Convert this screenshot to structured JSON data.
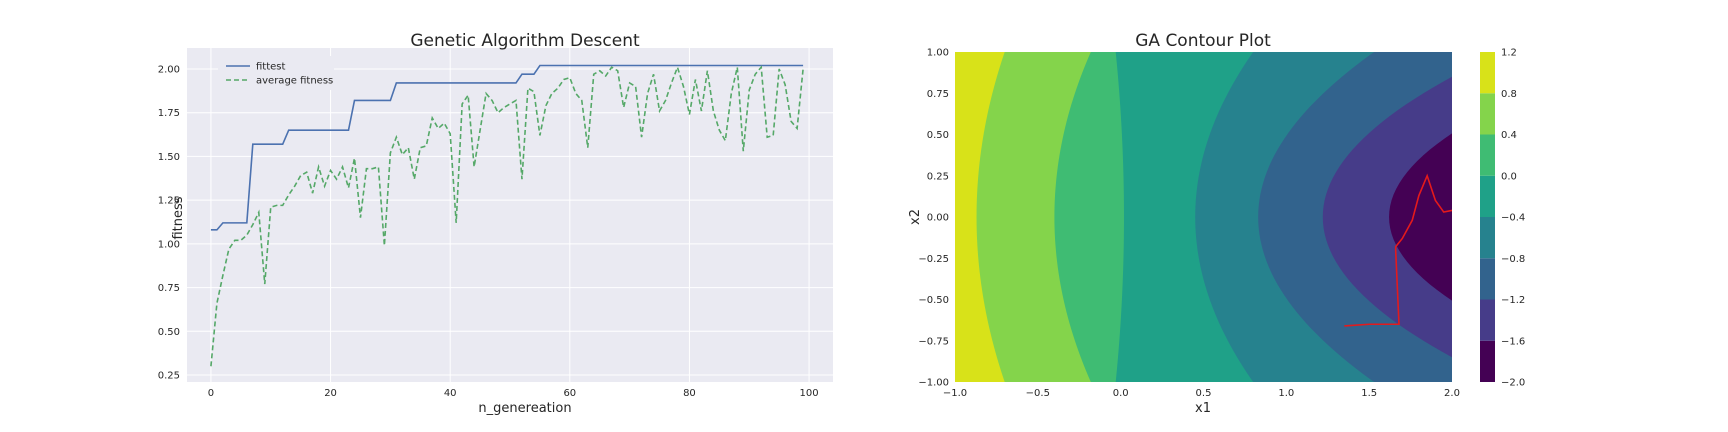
{
  "chart_data": [
    {
      "type": "line",
      "title": "Genetic Algorithm Descent",
      "xlabel": "n_genereation",
      "ylabel": "fitness",
      "xlim": [
        -4,
        104
      ],
      "ylim": [
        0.21,
        2.12
      ],
      "xticks": [
        0,
        20,
        40,
        60,
        80,
        100
      ],
      "yticks": [
        0.25,
        0.5,
        0.75,
        1.0,
        1.25,
        1.5,
        1.75,
        2.0
      ],
      "xtick_labels": [
        "0",
        "20",
        "40",
        "60",
        "80",
        "100"
      ],
      "ytick_labels": [
        "0.25",
        "0.50",
        "0.75",
        "1.00",
        "1.25",
        "1.50",
        "1.75",
        "2.00"
      ],
      "grid": true,
      "legend": "top-left",
      "series": [
        {
          "name": "fittest",
          "style": "solid",
          "color": "#4c72b0",
          "x": [
            0,
            1,
            2,
            3,
            4,
            5,
            6,
            7,
            8,
            9,
            10,
            11,
            12,
            13,
            14,
            15,
            16,
            17,
            18,
            19,
            20,
            21,
            22,
            23,
            24,
            25,
            26,
            27,
            28,
            29,
            30,
            31,
            32,
            33,
            34,
            35,
            36,
            37,
            38,
            39,
            40,
            41,
            42,
            43,
            44,
            45,
            46,
            47,
            48,
            49,
            50,
            51,
            52,
            53,
            54,
            55,
            56,
            57,
            58,
            59,
            60,
            61,
            62,
            63,
            64,
            65,
            66,
            67,
            68,
            69,
            70,
            71,
            72,
            73,
            74,
            75,
            76,
            77,
            78,
            79,
            80,
            81,
            82,
            83,
            84,
            85,
            86,
            87,
            88,
            89,
            90,
            91,
            92,
            93,
            94,
            95,
            96,
            97,
            98,
            99
          ],
          "y": [
            1.08,
            1.08,
            1.12,
            1.12,
            1.12,
            1.12,
            1.12,
            1.57,
            1.57,
            1.57,
            1.57,
            1.57,
            1.57,
            1.65,
            1.65,
            1.65,
            1.65,
            1.65,
            1.65,
            1.65,
            1.65,
            1.65,
            1.65,
            1.65,
            1.82,
            1.82,
            1.82,
            1.82,
            1.82,
            1.82,
            1.82,
            1.92,
            1.92,
            1.92,
            1.92,
            1.92,
            1.92,
            1.92,
            1.92,
            1.92,
            1.92,
            1.92,
            1.92,
            1.92,
            1.92,
            1.92,
            1.92,
            1.92,
            1.92,
            1.92,
            1.92,
            1.92,
            1.97,
            1.97,
            1.97,
            2.02,
            2.02,
            2.02,
            2.02,
            2.02,
            2.02,
            2.02,
            2.02,
            2.02,
            2.02,
            2.02,
            2.02,
            2.02,
            2.02,
            2.02,
            2.02,
            2.02,
            2.02,
            2.02,
            2.02,
            2.02,
            2.02,
            2.02,
            2.02,
            2.02,
            2.02,
            2.02,
            2.02,
            2.02,
            2.02,
            2.02,
            2.02,
            2.02,
            2.02,
            2.02,
            2.02,
            2.02,
            2.02,
            2.02,
            2.02,
            2.02,
            2.02,
            2.02,
            2.02,
            2.02
          ]
        },
        {
          "name": "average fitness",
          "style": "dashed",
          "color": "#55a868",
          "x": [
            0,
            1,
            2,
            3,
            4,
            5,
            6,
            7,
            8,
            9,
            10,
            11,
            12,
            13,
            14,
            15,
            16,
            17,
            18,
            19,
            20,
            21,
            22,
            23,
            24,
            25,
            26,
            27,
            28,
            29,
            30,
            31,
            32,
            33,
            34,
            35,
            36,
            37,
            38,
            39,
            40,
            41,
            42,
            43,
            44,
            45,
            46,
            47,
            48,
            49,
            50,
            51,
            52,
            53,
            54,
            55,
            56,
            57,
            58,
            59,
            60,
            61,
            62,
            63,
            64,
            65,
            66,
            67,
            68,
            69,
            70,
            71,
            72,
            73,
            74,
            75,
            76,
            77,
            78,
            79,
            80,
            81,
            82,
            83,
            84,
            85,
            86,
            87,
            88,
            89,
            90,
            91,
            92,
            93,
            94,
            95,
            96,
            97,
            98,
            99
          ],
          "y": [
            0.3,
            0.66,
            0.82,
            0.97,
            1.02,
            1.02,
            1.05,
            1.11,
            1.18,
            0.77,
            1.21,
            1.22,
            1.22,
            1.28,
            1.33,
            1.39,
            1.41,
            1.29,
            1.44,
            1.33,
            1.42,
            1.37,
            1.44,
            1.32,
            1.49,
            1.15,
            1.43,
            1.43,
            1.44,
            0.99,
            1.52,
            1.61,
            1.51,
            1.55,
            1.37,
            1.55,
            1.56,
            1.72,
            1.66,
            1.69,
            1.63,
            1.12,
            1.8,
            1.85,
            1.44,
            1.65,
            1.86,
            1.82,
            1.75,
            1.78,
            1.8,
            1.82,
            1.37,
            1.89,
            1.87,
            1.62,
            1.79,
            1.86,
            1.89,
            1.94,
            1.95,
            1.86,
            1.82,
            1.55,
            1.97,
            1.99,
            1.96,
            2.01,
            1.99,
            1.78,
            1.92,
            1.9,
            1.61,
            1.86,
            1.97,
            1.76,
            1.82,
            1.92,
            2.01,
            1.9,
            1.74,
            1.94,
            1.76,
            1.99,
            1.76,
            1.65,
            1.59,
            1.86,
            2.01,
            1.53,
            1.88,
            1.97,
            2.01,
            1.61,
            1.62,
            2.0,
            1.91,
            1.7,
            1.66,
            2.0
          ]
        }
      ]
    },
    {
      "type": "contour",
      "title": "GA Contour Plot",
      "xlabel": "x1",
      "ylabel": "x2",
      "xlim": [
        -1.0,
        2.0
      ],
      "ylim": [
        -1.0,
        1.0
      ],
      "xticks": [
        -1.0,
        -0.5,
        0.0,
        0.5,
        1.0,
        1.5,
        2.0
      ],
      "yticks": [
        -1.0,
        -0.75,
        -0.5,
        -0.25,
        0.0,
        0.25,
        0.5,
        0.75,
        1.0
      ],
      "xtick_labels": [
        "−1.0",
        "−0.5",
        "0.0",
        "0.5",
        "1.0",
        "1.5",
        "2.0"
      ],
      "ytick_labels": [
        "−1.00",
        "−0.75",
        "−0.50",
        "−0.25",
        "0.00",
        "0.25",
        "0.50",
        "0.75",
        "1.00"
      ],
      "colormap": "viridis",
      "levels": [
        -2.0,
        -1.6,
        -1.2,
        -0.8,
        -0.4,
        0.0,
        0.4,
        0.8,
        1.2
      ],
      "colorbar_tick_labels": [
        "−2.0",
        "−1.6",
        "−1.2",
        "−0.8",
        "−0.4",
        "0.0",
        "0.4",
        "0.8",
        "1.2"
      ],
      "level_colors": [
        "#440154",
        "#463c89",
        "#32638d",
        "#26828e",
        "#1fa188",
        "#3fbc73",
        "#84d44b",
        "#d8e219"
      ],
      "boundaries": [
        {
          "between": [
            1.2,
            0.8
          ],
          "vertex_x1": -0.87,
          "x1_at_edge": -0.7
        },
        {
          "between": [
            0.8,
            0.4
          ],
          "vertex_x1": -0.4,
          "x1_at_edge": -0.18
        },
        {
          "between": [
            0.4,
            0.0
          ],
          "vertex_x1": 0.02,
          "x1_at_edge": -0.03
        },
        {
          "between": [
            0.0,
            -0.4
          ],
          "vertex_x1": 0.45,
          "x1_at_edge": 0.8
        },
        {
          "between": [
            -0.4,
            -0.8
          ],
          "vertex_x1": 0.83,
          "x1_at_edge": 1.53
        },
        {
          "between": [
            -0.8,
            -1.2
          ],
          "vertex_x1": 1.22,
          "x1_at_edge": 2.3
        },
        {
          "between": [
            -1.2,
            -1.6
          ],
          "vertex_x1": 1.62,
          "x1_at_edge": 3.1
        }
      ],
      "path": {
        "color": "#e41a1c",
        "x1": [
          1.35,
          1.5,
          1.68,
          1.66,
          1.66,
          1.7,
          1.76,
          1.8,
          1.85,
          1.9,
          1.95,
          2.0
        ],
        "x2": [
          -0.66,
          -0.65,
          -0.65,
          -0.2,
          -0.18,
          -0.13,
          -0.02,
          0.13,
          0.25,
          0.1,
          0.03,
          0.04
        ]
      }
    }
  ]
}
